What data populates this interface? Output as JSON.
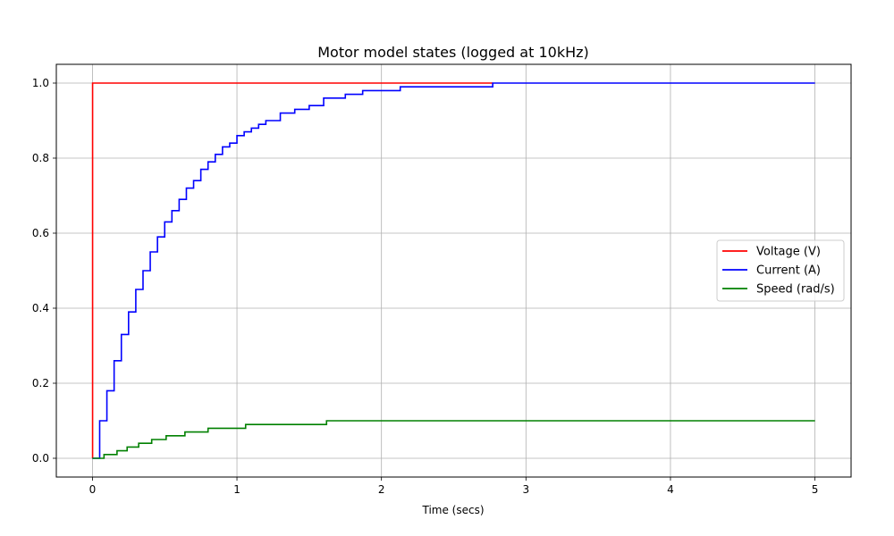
{
  "chart_data": {
    "type": "line",
    "title": "Motor model states (logged at 10kHz)",
    "xlabel": "Time (secs)",
    "ylabel": "",
    "xlim": [
      -0.25,
      5.25
    ],
    "ylim": [
      -0.05,
      1.05
    ],
    "xticks": [
      0,
      1,
      2,
      3,
      4,
      5
    ],
    "xtick_labels": [
      "0",
      "1",
      "2",
      "3",
      "4",
      "5"
    ],
    "yticks": [
      0.0,
      0.2,
      0.4,
      0.6,
      0.8,
      1.0
    ],
    "ytick_labels": [
      "0.0",
      "0.2",
      "0.4",
      "0.6",
      "0.8",
      "1.0"
    ],
    "grid": true,
    "legend_position": "center-right",
    "series": [
      {
        "name": "Voltage (V)",
        "color": "#ff0000",
        "step": true,
        "x": [
          0,
          0.001,
          2.77
        ],
        "y": [
          0,
          1.0,
          1.0
        ]
      },
      {
        "name": "Current (A)",
        "color": "#0000ff",
        "step": true,
        "x": [
          0,
          0.05,
          0.1,
          0.15,
          0.2,
          0.25,
          0.3,
          0.35,
          0.4,
          0.45,
          0.5,
          0.55,
          0.6,
          0.65,
          0.7,
          0.75,
          0.8,
          0.85,
          0.9,
          0.95,
          1.0,
          1.05,
          1.1,
          1.15,
          1.2,
          1.3,
          1.4,
          1.5,
          1.6,
          1.75,
          1.87,
          2.13,
          2.77,
          5.0
        ],
        "y": [
          0,
          0.1,
          0.18,
          0.26,
          0.33,
          0.39,
          0.45,
          0.5,
          0.55,
          0.59,
          0.63,
          0.66,
          0.69,
          0.72,
          0.74,
          0.77,
          0.79,
          0.81,
          0.83,
          0.84,
          0.86,
          0.87,
          0.88,
          0.89,
          0.9,
          0.92,
          0.93,
          0.94,
          0.96,
          0.97,
          0.98,
          0.99,
          1.0,
          1.0
        ]
      },
      {
        "name": "Speed (rad/s)",
        "color": "#008000",
        "step": true,
        "x": [
          0,
          0.08,
          0.17,
          0.24,
          0.32,
          0.41,
          0.51,
          0.64,
          0.8,
          1.06,
          1.62,
          5.0
        ],
        "y": [
          0,
          0.01,
          0.02,
          0.03,
          0.04,
          0.05,
          0.06,
          0.07,
          0.08,
          0.09,
          0.1,
          0.1
        ]
      }
    ]
  }
}
